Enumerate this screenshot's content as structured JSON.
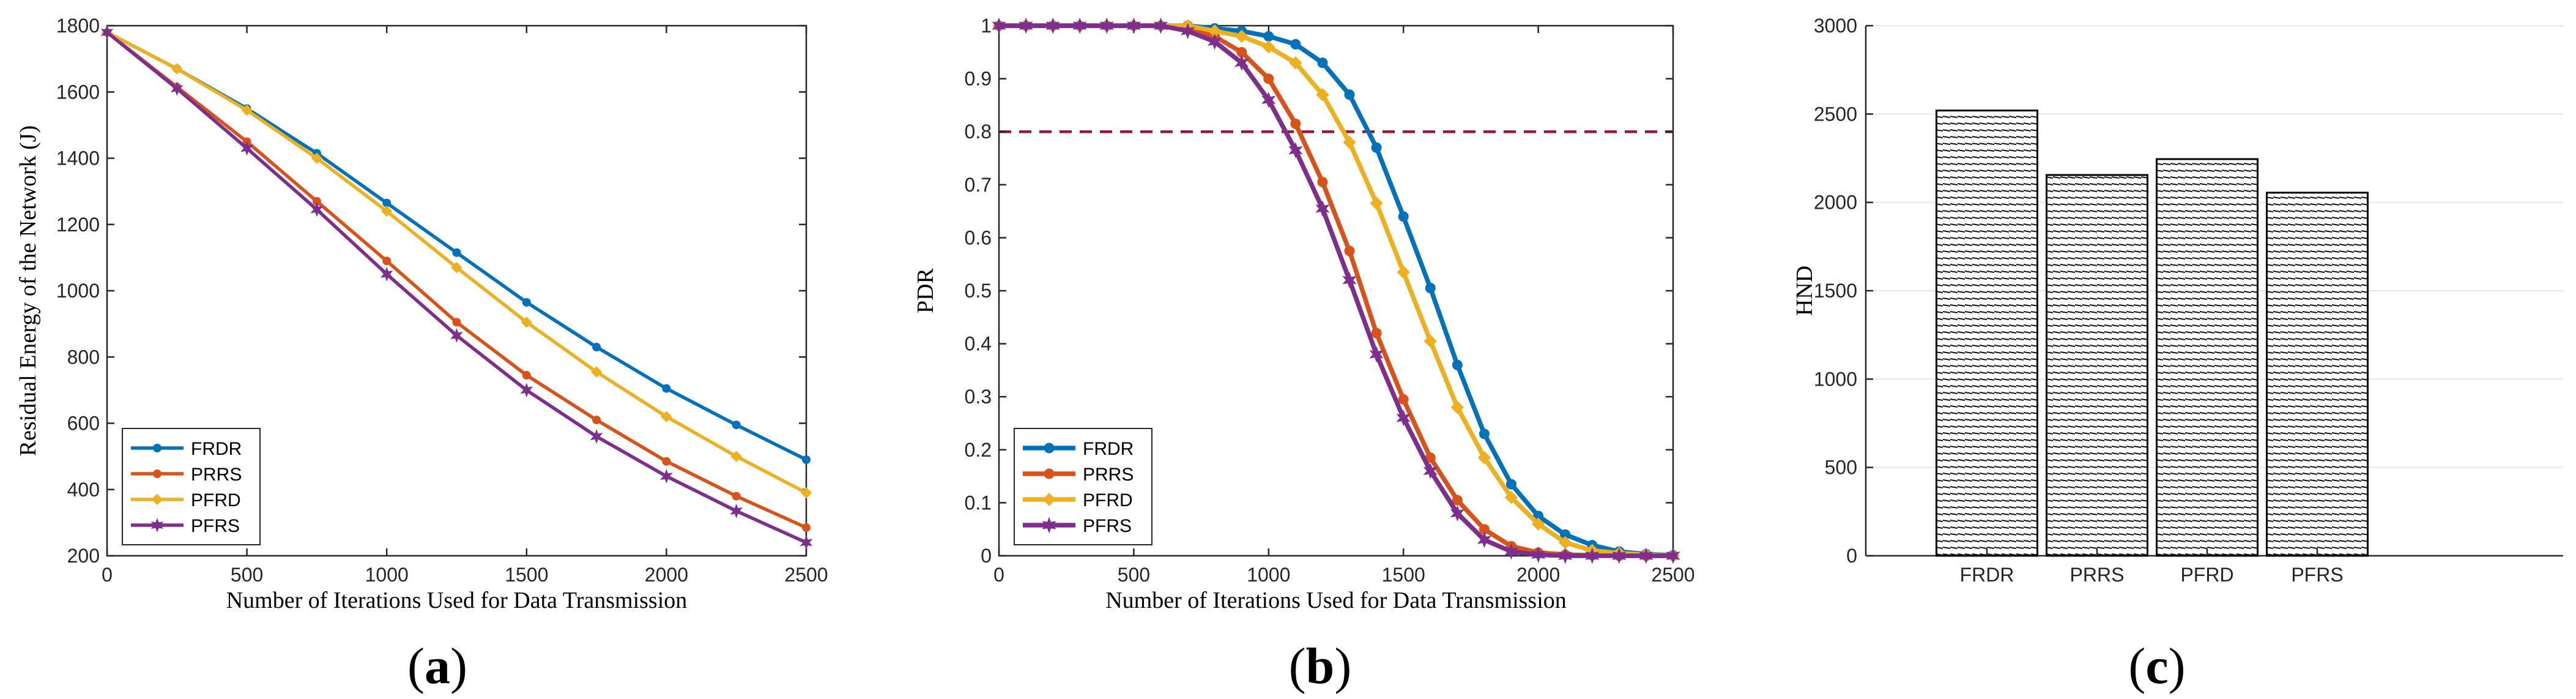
{
  "chart_data": [
    {
      "type": "line",
      "panel": "(a)",
      "panel_letter": "a",
      "xlabel": "Number of Iterations Used for Data Transmission",
      "ylabel": "Residual Energy of the Network (J)",
      "xlim": [
        0,
        2500
      ],
      "ylim": [
        200,
        1800
      ],
      "xticks": [
        0,
        500,
        1000,
        1500,
        2000,
        2500
      ],
      "yticks": [
        200,
        400,
        600,
        800,
        1000,
        1200,
        1400,
        1600,
        1800
      ],
      "legend": "bottom-left",
      "series": [
        {
          "name": "FRDR",
          "color": "#0072BD",
          "marker": "dot",
          "x": [
            0,
            250,
            500,
            750,
            1000,
            1250,
            1500,
            1750,
            2000,
            2250,
            2500
          ],
          "y": [
            1780,
            1670,
            1550,
            1415,
            1265,
            1115,
            965,
            830,
            705,
            595,
            490
          ]
        },
        {
          "name": "PRRS",
          "color": "#D95319",
          "marker": "dot",
          "x": [
            0,
            250,
            500,
            750,
            1000,
            1250,
            1500,
            1750,
            2000,
            2250,
            2500
          ],
          "y": [
            1780,
            1615,
            1450,
            1270,
            1090,
            905,
            745,
            610,
            485,
            380,
            285
          ]
        },
        {
          "name": "PFRD",
          "color": "#EDB120",
          "marker": "diamond",
          "x": [
            0,
            250,
            500,
            750,
            1000,
            1250,
            1500,
            1750,
            2000,
            2250,
            2500
          ],
          "y": [
            1780,
            1670,
            1545,
            1400,
            1240,
            1070,
            905,
            755,
            620,
            500,
            390
          ]
        },
        {
          "name": "PFRS",
          "color": "#7E2F8E",
          "marker": "star",
          "x": [
            0,
            250,
            500,
            750,
            1000,
            1250,
            1500,
            1750,
            2000,
            2250,
            2500
          ],
          "y": [
            1780,
            1610,
            1430,
            1245,
            1050,
            865,
            700,
            560,
            440,
            335,
            240
          ]
        }
      ]
    },
    {
      "type": "line",
      "panel": "(b)",
      "panel_letter": "b",
      "xlabel": "Number of Iterations Used for Data Transmission",
      "ylabel": "PDR",
      "xlim": [
        0,
        2500
      ],
      "ylim": [
        0,
        1
      ],
      "xticks": [
        0,
        500,
        1000,
        1500,
        2000,
        2500
      ],
      "yticks": [
        0,
        0.1,
        0.2,
        0.3,
        0.4,
        0.5,
        0.6,
        0.7,
        0.8,
        0.9,
        1
      ],
      "threshold": 0.8,
      "threshold_color": "#A2142F",
      "legend": "bottom-left",
      "series": [
        {
          "name": "FRDR",
          "color": "#0072BD",
          "marker": "dot",
          "x": [
            0,
            100,
            200,
            300,
            400,
            500,
            600,
            700,
            800,
            900,
            1000,
            1100,
            1200,
            1300,
            1400,
            1500,
            1600,
            1700,
            1800,
            1900,
            2000,
            2100,
            2200,
            2300,
            2400,
            2500
          ],
          "y": [
            1,
            1,
            1,
            1,
            1,
            1,
            1,
            1,
            0.995,
            0.99,
            0.98,
            0.965,
            0.93,
            0.87,
            0.77,
            0.64,
            0.505,
            0.36,
            0.23,
            0.135,
            0.075,
            0.04,
            0.02,
            0.008,
            0.003,
            0.001
          ]
        },
        {
          "name": "PRRS",
          "color": "#D95319",
          "marker": "dot",
          "x": [
            0,
            100,
            200,
            300,
            400,
            500,
            600,
            700,
            800,
            900,
            1000,
            1100,
            1200,
            1300,
            1400,
            1500,
            1600,
            1700,
            1800,
            1900,
            2000,
            2100,
            2200,
            2300,
            2400,
            2500
          ],
          "y": [
            1,
            1,
            1,
            1,
            1,
            1,
            1,
            0.995,
            0.98,
            0.95,
            0.9,
            0.815,
            0.705,
            0.575,
            0.42,
            0.295,
            0.185,
            0.105,
            0.05,
            0.018,
            0.006,
            0.002,
            0.001,
            0,
            0,
            0
          ]
        },
        {
          "name": "PFRD",
          "color": "#EDB120",
          "marker": "diamond",
          "x": [
            0,
            100,
            200,
            300,
            400,
            500,
            600,
            700,
            800,
            900,
            1000,
            1100,
            1200,
            1300,
            1400,
            1500,
            1600,
            1700,
            1800,
            1900,
            2000,
            2100,
            2200,
            2300,
            2400,
            2500
          ],
          "y": [
            1,
            1,
            1,
            1,
            1,
            1,
            1,
            1,
            0.99,
            0.98,
            0.96,
            0.93,
            0.87,
            0.78,
            0.665,
            0.535,
            0.405,
            0.28,
            0.185,
            0.11,
            0.06,
            0.025,
            0.01,
            0.005,
            0.002,
            0
          ]
        },
        {
          "name": "PFRS",
          "color": "#7E2F8E",
          "marker": "star",
          "x": [
            0,
            100,
            200,
            300,
            400,
            500,
            600,
            700,
            800,
            900,
            1000,
            1100,
            1200,
            1300,
            1400,
            1500,
            1600,
            1700,
            1800,
            1900,
            2000,
            2100,
            2200,
            2300,
            2400,
            2500
          ],
          "y": [
            1,
            1,
            1,
            1,
            1,
            1,
            1,
            0.99,
            0.97,
            0.93,
            0.86,
            0.765,
            0.655,
            0.52,
            0.38,
            0.26,
            0.16,
            0.08,
            0.03,
            0.008,
            0.002,
            0,
            0,
            0,
            0,
            0
          ]
        }
      ]
    },
    {
      "type": "bar",
      "panel": "(c)",
      "panel_letter": "c",
      "ylabel": "HND",
      "categories": [
        "FRDR",
        "PRRS",
        "PFRD",
        "PFRS"
      ],
      "values": [
        2520,
        2155,
        2245,
        2055
      ],
      "ylim": [
        0,
        3000
      ],
      "yticks": [
        0,
        500,
        1000,
        1500,
        2000,
        2500,
        3000
      ],
      "grid": true
    }
  ]
}
